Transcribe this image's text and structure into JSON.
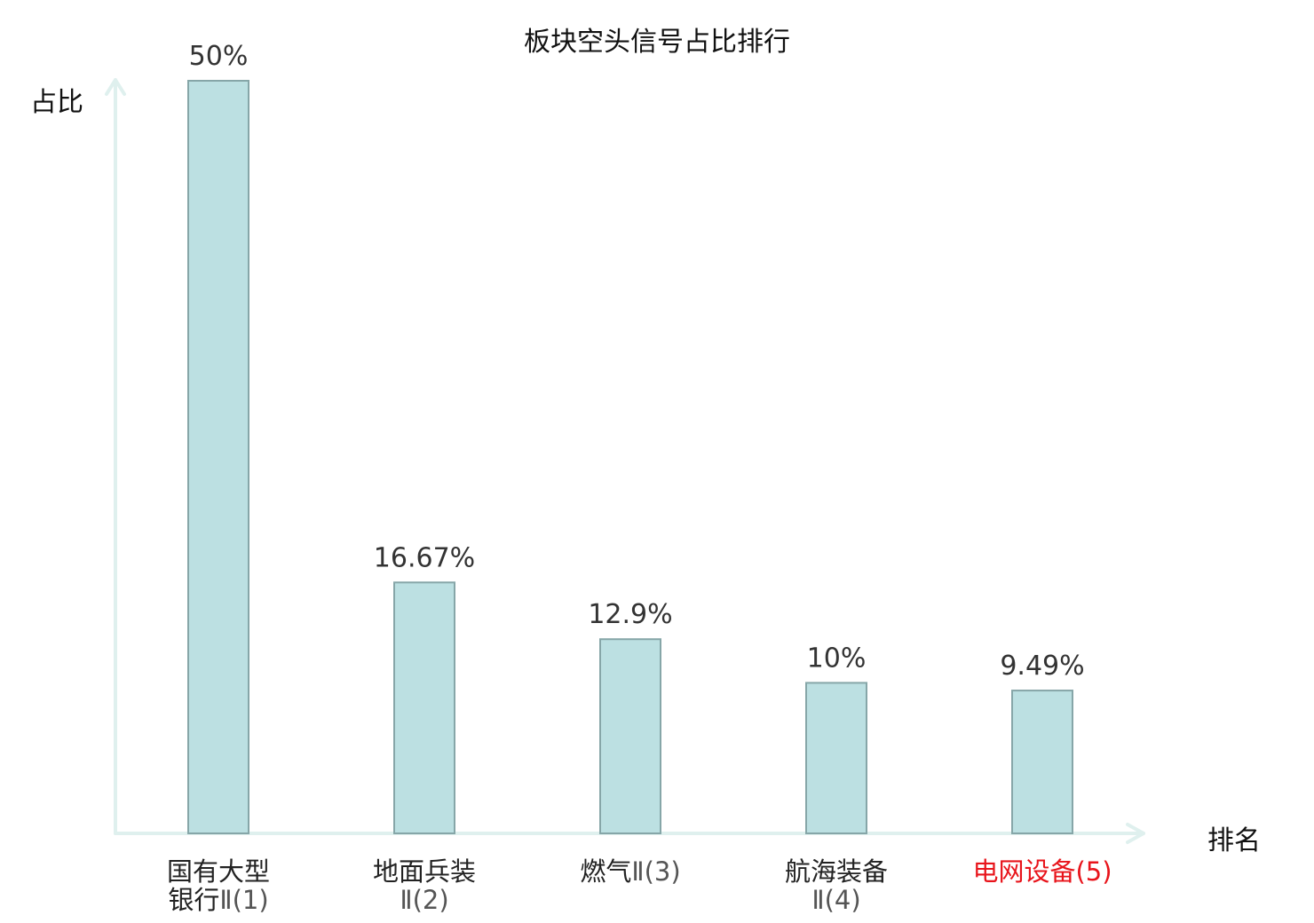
{
  "chart_data": {
    "type": "bar",
    "title": "板块空头信号占比排行",
    "ylabel": "占比",
    "xlabel": "排名",
    "ylim": [
      0,
      50
    ],
    "grid": false,
    "categories": [
      {
        "name_line1": "国有大型",
        "name_line2": "银行",
        "rank": "Ⅱ(1)",
        "highlight": false
      },
      {
        "name_line1": "地面兵装",
        "name_line2": "",
        "rank": "Ⅱ(2)",
        "highlight": false
      },
      {
        "name_line1": "燃气",
        "name_line2": "",
        "rank": "Ⅱ(3)",
        "highlight": false
      },
      {
        "name_line1": "航海装备",
        "name_line2": "",
        "rank": "Ⅱ(4)",
        "highlight": false
      },
      {
        "name_line1": "电网设备",
        "name_line2": "",
        "rank": "(5)",
        "highlight": true
      }
    ],
    "values": [
      50,
      16.67,
      12.9,
      10,
      9.49
    ],
    "value_labels": [
      "50%",
      "16.67%",
      "12.9%",
      "10%",
      "9.49%"
    ],
    "colors": {
      "bar_fill": "#bce0e2",
      "bar_stroke": "#86a6a8",
      "axis": "#dff0ee",
      "highlight": "#e8141b"
    }
  }
}
